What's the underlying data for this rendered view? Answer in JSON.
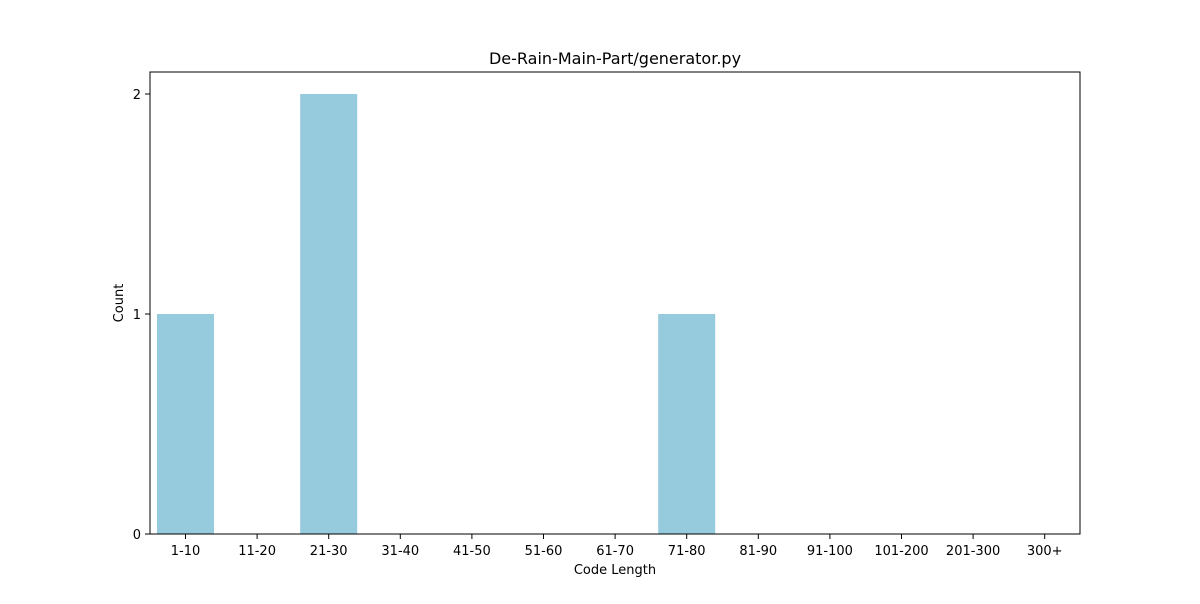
{
  "chart_data": {
    "type": "bar",
    "title": "De-Rain-Main-Part/generator.py",
    "xlabel": "Code Length",
    "ylabel": "Count",
    "categories": [
      "1-10",
      "11-20",
      "21-30",
      "31-40",
      "41-50",
      "51-60",
      "61-70",
      "71-80",
      "81-90",
      "91-100",
      "101-200",
      "201-300",
      "300+"
    ],
    "values": [
      1,
      0,
      2,
      0,
      0,
      0,
      0,
      1,
      0,
      0,
      0,
      0,
      0
    ],
    "yticks": [
      0,
      1,
      2
    ],
    "ylim": [
      0,
      2.1
    ],
    "grid": false,
    "bar_color": "#96cadd"
  }
}
